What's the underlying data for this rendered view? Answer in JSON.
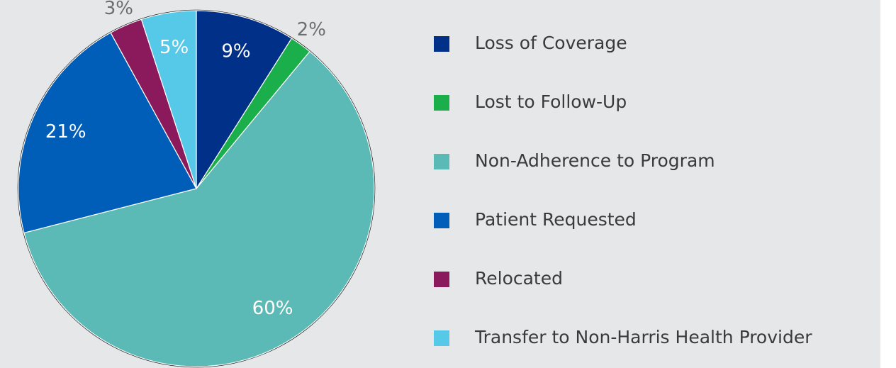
{
  "chart_data": {
    "type": "pie",
    "categories": [
      "Loss of Coverage",
      "Lost to Follow-Up",
      "Non-Adherence to Program",
      "Patient Requested",
      "Relocated",
      "Transfer to Non-Harris Health Provider"
    ],
    "values": [
      9,
      2,
      60,
      21,
      3,
      5
    ],
    "value_labels": [
      "9%",
      "2%",
      "60%",
      "21%",
      "3%",
      "5%"
    ],
    "colors": [
      "#003087",
      "#1aaf4b",
      "#5bbab5",
      "#005eb8",
      "#8a1a5b",
      "#56c8e8"
    ],
    "legend": "right"
  }
}
